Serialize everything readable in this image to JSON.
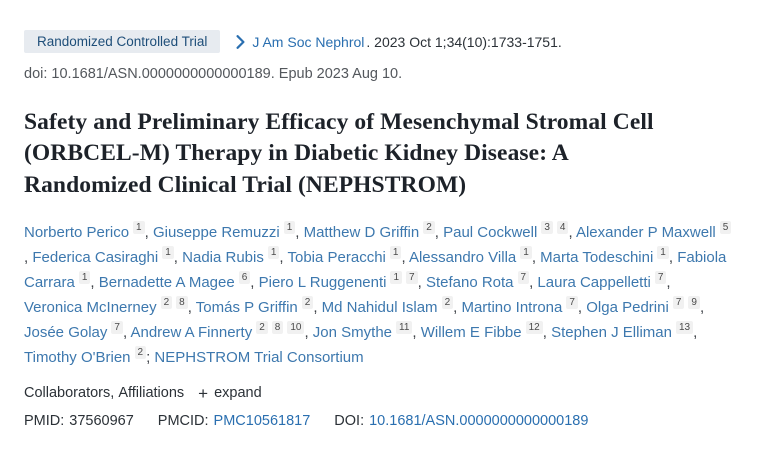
{
  "badge": {
    "label": "Randomized Controlled Trial"
  },
  "citation": {
    "journal": "J Am Soc Nephrol",
    "details": ". 2023 Oct 1;34(10):1733-1751.",
    "doi_line": "doi: 10.1681/ASN.0000000000000189. Epub 2023 Aug 10."
  },
  "title": "Safety and Preliminary Efficacy of Mesenchymal Stromal Cell (ORBCEL-M) Therapy in Diabetic Kidney Disease: A Randomized Clinical Trial (NEPHSTROM)",
  "authors": [
    {
      "name": "Norberto Perico",
      "sups": [
        "1"
      ],
      "sep": ", "
    },
    {
      "name": "Giuseppe Remuzzi",
      "sups": [
        "1"
      ],
      "sep": ", "
    },
    {
      "name": "Matthew D Griffin",
      "sups": [
        "2"
      ],
      "sep": ", "
    },
    {
      "name": "Paul Cockwell",
      "sups": [
        "3",
        "4"
      ],
      "sep": ", "
    },
    {
      "name": "Alexander P Maxwell",
      "sups": [
        "5"
      ],
      "sep": ", "
    },
    {
      "name": "Federica Casiraghi",
      "sups": [
        "1"
      ],
      "sep": ", "
    },
    {
      "name": "Nadia Rubis",
      "sups": [
        "1"
      ],
      "sep": ", "
    },
    {
      "name": "Tobia Peracchi",
      "sups": [
        "1"
      ],
      "sep": ", "
    },
    {
      "name": "Alessandro Villa",
      "sups": [
        "1"
      ],
      "sep": ", "
    },
    {
      "name": "Marta Todeschini",
      "sups": [
        "1"
      ],
      "sep": ", "
    },
    {
      "name": "Fabiola Carrara",
      "sups": [
        "1"
      ],
      "sep": ", "
    },
    {
      "name": "Bernadette A Magee",
      "sups": [
        "6"
      ],
      "sep": ", "
    },
    {
      "name": "Piero L Ruggenenti",
      "sups": [
        "1",
        "7"
      ],
      "sep": ", "
    },
    {
      "name": "Stefano Rota",
      "sups": [
        "7"
      ],
      "sep": ", "
    },
    {
      "name": "Laura Cappelletti",
      "sups": [
        "7"
      ],
      "sep": ", "
    },
    {
      "name": "Veronica McInerney",
      "sups": [
        "2",
        "8"
      ],
      "sep": ", "
    },
    {
      "name": "Tomás P Griffin",
      "sups": [
        "2"
      ],
      "sep": ", "
    },
    {
      "name": "Md Nahidul Islam",
      "sups": [
        "2"
      ],
      "sep": ", "
    },
    {
      "name": "Martino Introna",
      "sups": [
        "7"
      ],
      "sep": ", "
    },
    {
      "name": "Olga Pedrini",
      "sups": [
        "7",
        "9"
      ],
      "sep": ", "
    },
    {
      "name": "Josée Golay",
      "sups": [
        "7"
      ],
      "sep": ", "
    },
    {
      "name": "Andrew A Finnerty",
      "sups": [
        "2",
        "8",
        "10"
      ],
      "sep": ", "
    },
    {
      "name": "Jon Smythe",
      "sups": [
        "11"
      ],
      "sep": ", "
    },
    {
      "name": "Willem E Fibbe",
      "sups": [
        "12"
      ],
      "sep": ", "
    },
    {
      "name": "Stephen J Elliman",
      "sups": [
        "13"
      ],
      "sep": ", "
    },
    {
      "name": "Timothy O'Brien",
      "sups": [
        "2"
      ],
      "sep": "; "
    },
    {
      "name": "NEPHSTROM Trial Consortium",
      "sups": [],
      "sep": ""
    }
  ],
  "collaborators": {
    "label_collaborators": "Collaborators",
    "separator": ", ",
    "label_affiliations": "Affiliations",
    "plus_icon": "+",
    "expand_label": "expand"
  },
  "identifiers": {
    "pmid_label": "PMID:",
    "pmid": "37560967",
    "pmcid_label": "PMCID:",
    "pmcid": "PMC10561817",
    "doi_label": "DOI:",
    "doi": "10.1681/ASN.0000000000000189"
  },
  "colors": {
    "link_blue": "#2a6fb0",
    "author_blue": "#3d78ae",
    "badge_bg": "#e7ebf0",
    "badge_text": "#1e4e79",
    "sup_bg": "#f1f1f1",
    "title_color": "#1d2229",
    "text_dark": "#2b3137",
    "text_grey": "#53575c"
  }
}
